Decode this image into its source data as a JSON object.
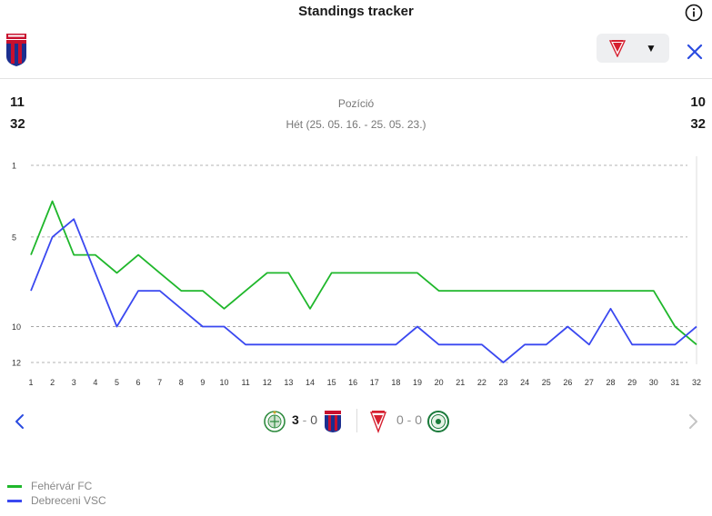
{
  "header": {
    "title": "Standings tracker"
  },
  "summary": {
    "left_position": "11",
    "left_week": "32",
    "right_position": "10",
    "right_week": "32",
    "metric_label": "Pozíció",
    "week_label": "Hét (25. 05. 16. - 25. 05. 23.)"
  },
  "matches": [
    {
      "home_score": "3",
      "away_score": "0"
    },
    {
      "home_score": "0",
      "away_score": "0"
    }
  ],
  "colors": {
    "green": "#1fb72b",
    "blue": "#3a48f0",
    "grid": "#9a9a9a",
    "accent_close": "#2a4be0"
  },
  "legend": [
    {
      "label": "Fehérvár FC",
      "color": "#1fb72b"
    },
    {
      "label": "Debreceni VSC",
      "color": "#3a48f0"
    }
  ],
  "chart_data": {
    "type": "line",
    "x": [
      1,
      2,
      3,
      4,
      5,
      6,
      7,
      8,
      9,
      10,
      11,
      12,
      13,
      14,
      15,
      16,
      17,
      18,
      19,
      20,
      21,
      22,
      23,
      24,
      25,
      26,
      27,
      28,
      29,
      30,
      31,
      32
    ],
    "y_ticks": [
      1,
      5,
      10,
      12
    ],
    "ylim": [
      1,
      12
    ],
    "y_inverted": true,
    "grid": "dashed horizontal",
    "legend_position": "bottom-left",
    "series": [
      {
        "name": "Fehérvár FC",
        "color": "#1fb72b",
        "values": [
          6,
          3,
          6,
          6,
          7,
          6,
          7,
          8,
          8,
          9,
          8,
          7,
          7,
          9,
          7,
          7,
          7,
          7,
          7,
          8,
          8,
          8,
          8,
          8,
          8,
          8,
          8,
          8,
          8,
          8,
          10,
          11
        ]
      },
      {
        "name": "Debreceni VSC",
        "color": "#3a48f0",
        "values": [
          8,
          5,
          4,
          7,
          10,
          8,
          8,
          9,
          10,
          10,
          11,
          11,
          11,
          11,
          11,
          11,
          11,
          11,
          10,
          11,
          11,
          11,
          12,
          11,
          11,
          10,
          11,
          9,
          11,
          11,
          11,
          10
        ]
      }
    ]
  }
}
